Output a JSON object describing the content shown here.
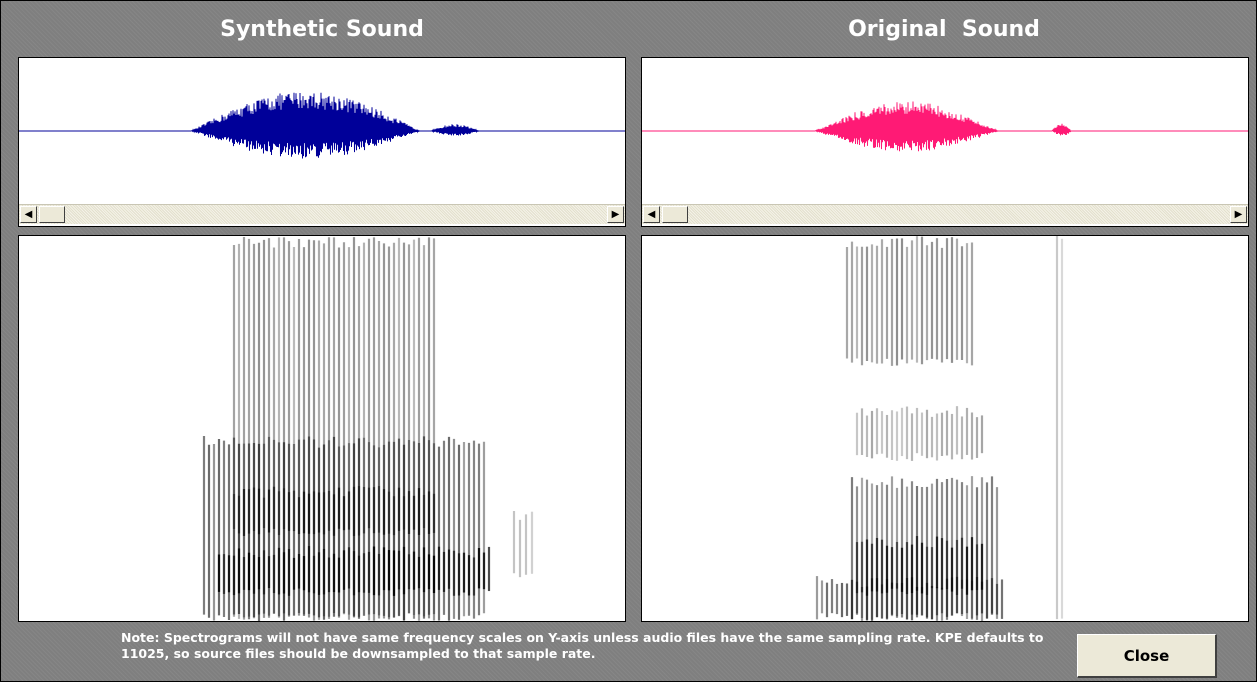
{
  "titles": {
    "synthetic": "Synthetic Sound",
    "original": "Original  Sound"
  },
  "colors": {
    "synthetic_wave": "#000099",
    "original_wave": "#ff1a75",
    "background": "#808080"
  },
  "scrollbars": {
    "left_arrow": "◀",
    "right_arrow": "▶"
  },
  "note": "Note: Spectrograms will not have same frequency scales on Y-axis unless audio files have the same sampling rate.  KPE defaults to 11025, so source files should be downsampled to that sample rate.",
  "close_button": "Close"
}
